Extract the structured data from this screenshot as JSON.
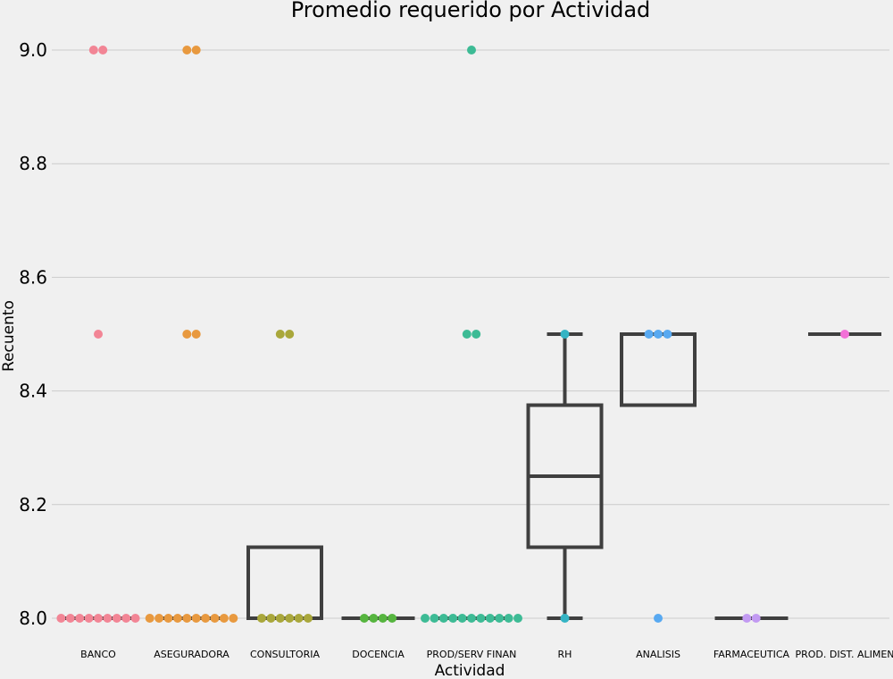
{
  "chart_data": {
    "type": "box",
    "title": "Promedio requerido por Actividad",
    "xlabel": "Actividad",
    "ylabel": "Recuento",
    "ylim": [
      8.0,
      9.0
    ],
    "yticks": [
      "8.0",
      "8.2",
      "8.4",
      "8.6",
      "8.8",
      "9.0"
    ],
    "grid": "horizontal",
    "categories": [
      "BANCO",
      "ASEGURADORA",
      "CONSULTORIA",
      "DOCENCIA",
      "PROD/SERV FINAN",
      "RH",
      "ANALISIS",
      "FARMACEUTICA",
      "PROD. DIST. ALIMEN"
    ],
    "colors": [
      "#f28595",
      "#e8993f",
      "#a9a73b",
      "#56b53f",
      "#3dbb95",
      "#35b4c4",
      "#58a9f1",
      "#c29af2",
      "#f271d7"
    ],
    "boxes": [
      {
        "category": "BANCO",
        "min": 8.0,
        "q1": 8.0,
        "median": 8.0,
        "q3": 8.0,
        "max": 8.0
      },
      {
        "category": "ASEGURADORA",
        "min": 8.0,
        "q1": 8.0,
        "median": 8.0,
        "q3": 8.0,
        "max": 8.0
      },
      {
        "category": "CONSULTORIA",
        "min": 8.0,
        "q1": 8.0,
        "median": 8.0,
        "q3": 8.125,
        "max": 8.125
      },
      {
        "category": "DOCENCIA",
        "min": 8.0,
        "q1": 8.0,
        "median": 8.0,
        "q3": 8.0,
        "max": 8.0
      },
      {
        "category": "PROD/SERV FINAN",
        "min": 8.0,
        "q1": 8.0,
        "median": 8.0,
        "q3": 8.0,
        "max": 8.0
      },
      {
        "category": "RH",
        "min": 8.0,
        "q1": 8.125,
        "median": 8.25,
        "q3": 8.375,
        "max": 8.5
      },
      {
        "category": "ANALISIS",
        "min": 8.375,
        "q1": 8.375,
        "median": 8.5,
        "q3": 8.5,
        "max": 8.5
      },
      {
        "category": "FARMACEUTICA",
        "min": 8.0,
        "q1": 8.0,
        "median": 8.0,
        "q3": 8.0,
        "max": 8.0
      },
      {
        "category": "PROD. DIST. ALIMEN",
        "min": 8.5,
        "q1": 8.5,
        "median": 8.5,
        "q3": 8.5,
        "max": 8.5
      }
    ],
    "points": [
      {
        "category": "BANCO",
        "values": [
          9.0,
          9.0,
          8.5,
          8.0,
          8.0,
          8.0,
          8.0,
          8.0,
          8.0,
          8.0,
          8.0,
          8.0
        ]
      },
      {
        "category": "ASEGURADORA",
        "values": [
          9.0,
          9.0,
          8.5,
          8.5,
          8.0,
          8.0,
          8.0,
          8.0,
          8.0,
          8.0,
          8.0,
          8.0,
          8.0,
          8.0
        ]
      },
      {
        "category": "CONSULTORIA",
        "values": [
          8.5,
          8.5,
          8.0,
          8.0,
          8.0,
          8.0,
          8.0,
          8.0
        ]
      },
      {
        "category": "DOCENCIA",
        "values": [
          8.0,
          8.0,
          8.0,
          8.0
        ]
      },
      {
        "category": "PROD/SERV FINAN",
        "values": [
          9.0,
          8.5,
          8.5,
          8.0,
          8.0,
          8.0,
          8.0,
          8.0,
          8.0,
          8.0,
          8.0,
          8.0,
          8.0,
          8.0
        ]
      },
      {
        "category": "RH",
        "values": [
          8.5,
          8.0
        ]
      },
      {
        "category": "ANALISIS",
        "values": [
          8.5,
          8.5,
          8.5,
          8.0
        ]
      },
      {
        "category": "FARMACEUTICA",
        "values": [
          8.0,
          8.0
        ]
      },
      {
        "category": "PROD. DIST. ALIMEN",
        "values": [
          8.5
        ]
      }
    ]
  }
}
